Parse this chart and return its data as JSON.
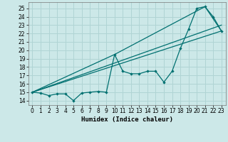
{
  "title": "",
  "xlabel": "Humidex (Indice chaleur)",
  "bg_color": "#cce8e8",
  "grid_color": "#b0d4d4",
  "line_color": "#007070",
  "xlim": [
    -0.5,
    23.5
  ],
  "ylim": [
    13.5,
    25.7
  ],
  "yticks": [
    14,
    15,
    16,
    17,
    18,
    19,
    20,
    21,
    22,
    23,
    24,
    25
  ],
  "xticks": [
    0,
    1,
    2,
    3,
    4,
    5,
    6,
    7,
    8,
    9,
    10,
    11,
    12,
    13,
    14,
    15,
    16,
    17,
    18,
    19,
    20,
    21,
    22,
    23
  ],
  "line1_x": [
    0,
    1,
    2,
    3,
    4,
    5,
    6,
    7,
    8,
    9,
    10,
    11,
    12,
    13,
    14,
    15,
    16,
    17,
    18,
    19,
    20,
    21,
    22,
    23
  ],
  "line1_y": [
    15.0,
    14.9,
    14.6,
    14.8,
    14.8,
    14.0,
    14.9,
    15.0,
    15.1,
    15.0,
    19.5,
    17.5,
    17.2,
    17.2,
    17.5,
    17.5,
    16.2,
    17.5,
    20.2,
    22.5,
    25.0,
    25.2,
    24.0,
    22.3
  ],
  "line2_x": [
    0,
    23
  ],
  "line2_y": [
    15.0,
    22.3
  ],
  "line3_x": [
    0,
    23
  ],
  "line3_y": [
    15.0,
    23.0
  ],
  "line4_x": [
    0,
    10,
    21,
    23
  ],
  "line4_y": [
    15.0,
    19.5,
    25.2,
    22.3
  ],
  "xlabel_fontsize": 6.5,
  "tick_fontsize": 5.5,
  "lw": 0.9,
  "ms": 2.2
}
